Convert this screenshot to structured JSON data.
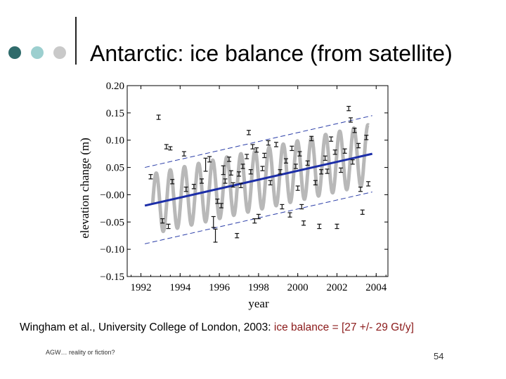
{
  "slide": {
    "title": "Antarctic: ice balance (from satellite)",
    "caption_prefix": "Wingham et al., University College of London, 2003: ",
    "caption_highlight": "ice balance = [27 +/- 29 Gt/y]",
    "footer_text": "AGW… reality or fiction?",
    "page_number": "54",
    "dot_colors": [
      "#2f6b6b",
      "#9ccfcf",
      "#c9c9c9"
    ],
    "highlight_color": "#8b1a1a"
  },
  "chart_data": {
    "type": "scatter",
    "title": "",
    "xlabel": "year",
    "ylabel": "elevation change (m)",
    "xlim": [
      1991.3,
      2004.6
    ],
    "ylim": [
      -0.15,
      0.2
    ],
    "x_ticks": [
      1992,
      1994,
      1996,
      1998,
      2000,
      2002,
      2004
    ],
    "x_tick_labels": [
      "1992",
      "1994",
      "1996",
      "1998",
      "2000",
      "2002",
      "2004"
    ],
    "y_ticks": [
      -0.15,
      -0.1,
      -0.05,
      0.0,
      0.05,
      0.1,
      0.15,
      0.2
    ],
    "y_tick_labels": [
      "−0.15",
      "−0.10",
      "−0.05",
      "−0.00",
      "0.05",
      "0.10",
      "0.15",
      "0.20"
    ],
    "trend": {
      "name": "trend",
      "x": [
        1992.2,
        2003.8
      ],
      "y": [
        -0.02,
        0.075
      ],
      "color": "#1c2ea8"
    },
    "upper_bound": {
      "name": "upper bound",
      "x": [
        1992.2,
        2003.8
      ],
      "y": [
        0.05,
        0.145
      ],
      "color": "#2b3ea8"
    },
    "lower_bound": {
      "name": "lower bound",
      "x": [
        1992.2,
        2003.8
      ],
      "y": [
        -0.09,
        0.005
      ],
      "color": "#2b3ea8"
    },
    "seasonal": {
      "name": "seasonal cycle",
      "x_start": 1992.6,
      "x_end": 2003.6,
      "amplitude": 0.055,
      "period": 0.72,
      "color": "#b8b8b8"
    },
    "series": [
      {
        "name": "satellite elevation change",
        "points": [
          {
            "x": 1992.5,
            "y": 0.033,
            "err": 0.004
          },
          {
            "x": 1992.9,
            "y": 0.142,
            "err": 0.004
          },
          {
            "x": 1993.1,
            "y": -0.048,
            "err": 0.004
          },
          {
            "x": 1993.3,
            "y": 0.088,
            "err": 0.004
          },
          {
            "x": 1993.4,
            "y": -0.058,
            "err": 0.004
          },
          {
            "x": 1993.5,
            "y": 0.085,
            "err": 0.003
          },
          {
            "x": 1993.6,
            "y": 0.024,
            "err": 0.004
          },
          {
            "x": 1994.2,
            "y": 0.075,
            "err": 0.004
          },
          {
            "x": 1994.3,
            "y": 0.01,
            "err": 0.004
          },
          {
            "x": 1994.7,
            "y": 0.015,
            "err": 0.004
          },
          {
            "x": 1995.1,
            "y": 0.025,
            "err": 0.004
          },
          {
            "x": 1995.3,
            "y": 0.055,
            "err": 0.012
          },
          {
            "x": 1995.5,
            "y": 0.065,
            "err": 0.005
          },
          {
            "x": 1995.7,
            "y": -0.05,
            "err": 0.01
          },
          {
            "x": 1995.8,
            "y": -0.075,
            "err": 0.012
          },
          {
            "x": 1995.9,
            "y": -0.012,
            "err": 0.004
          },
          {
            "x": 1996.1,
            "y": -0.02,
            "err": 0.004
          },
          {
            "x": 1996.2,
            "y": 0.045,
            "err": 0.008
          },
          {
            "x": 1996.3,
            "y": 0.025,
            "err": 0.004
          },
          {
            "x": 1996.5,
            "y": 0.065,
            "err": 0.004
          },
          {
            "x": 1996.6,
            "y": 0.04,
            "err": 0.004
          },
          {
            "x": 1996.7,
            "y": 0.018,
            "err": 0.004
          },
          {
            "x": 1996.9,
            "y": -0.075,
            "err": 0.004
          },
          {
            "x": 1997.0,
            "y": 0.038,
            "err": 0.004
          },
          {
            "x": 1997.1,
            "y": 0.017,
            "err": 0.004
          },
          {
            "x": 1997.2,
            "y": 0.052,
            "err": 0.004
          },
          {
            "x": 1997.4,
            "y": 0.07,
            "err": 0.004
          },
          {
            "x": 1997.5,
            "y": 0.114,
            "err": 0.004
          },
          {
            "x": 1997.6,
            "y": 0.042,
            "err": 0.004
          },
          {
            "x": 1997.7,
            "y": 0.088,
            "err": 0.004
          },
          {
            "x": 1997.8,
            "y": -0.048,
            "err": 0.004
          },
          {
            "x": 1997.9,
            "y": 0.082,
            "err": 0.004
          },
          {
            "x": 1998.0,
            "y": -0.04,
            "err": 0.004
          },
          {
            "x": 1998.2,
            "y": 0.048,
            "err": 0.004
          },
          {
            "x": 1998.3,
            "y": 0.072,
            "err": 0.004
          },
          {
            "x": 1998.5,
            "y": 0.095,
            "err": 0.004
          },
          {
            "x": 1998.6,
            "y": 0.022,
            "err": 0.004
          },
          {
            "x": 1998.9,
            "y": 0.092,
            "err": 0.004
          },
          {
            "x": 1999.1,
            "y": 0.042,
            "err": 0.004
          },
          {
            "x": 1999.2,
            "y": -0.022,
            "err": 0.004
          },
          {
            "x": 1999.4,
            "y": 0.062,
            "err": 0.004
          },
          {
            "x": 1999.6,
            "y": -0.037,
            "err": 0.004
          },
          {
            "x": 1999.7,
            "y": 0.085,
            "err": 0.004
          },
          {
            "x": 1999.9,
            "y": 0.052,
            "err": 0.004
          },
          {
            "x": 2000.0,
            "y": 0.012,
            "err": 0.004
          },
          {
            "x": 2000.1,
            "y": 0.075,
            "err": 0.004
          },
          {
            "x": 2000.2,
            "y": -0.022,
            "err": 0.004
          },
          {
            "x": 2000.3,
            "y": -0.052,
            "err": 0.004
          },
          {
            "x": 2000.5,
            "y": 0.058,
            "err": 0.004
          },
          {
            "x": 2000.7,
            "y": 0.103,
            "err": 0.004
          },
          {
            "x": 2000.9,
            "y": 0.022,
            "err": 0.004
          },
          {
            "x": 2001.1,
            "y": -0.058,
            "err": 0.004
          },
          {
            "x": 2001.2,
            "y": 0.042,
            "err": 0.004
          },
          {
            "x": 2001.4,
            "y": 0.067,
            "err": 0.004
          },
          {
            "x": 2001.5,
            "y": 0.043,
            "err": 0.004
          },
          {
            "x": 2001.7,
            "y": 0.102,
            "err": 0.004
          },
          {
            "x": 2001.9,
            "y": 0.078,
            "err": 0.004
          },
          {
            "x": 2002.0,
            "y": -0.058,
            "err": 0.004
          },
          {
            "x": 2002.2,
            "y": 0.045,
            "err": 0.004
          },
          {
            "x": 2002.4,
            "y": 0.08,
            "err": 0.004
          },
          {
            "x": 2002.6,
            "y": 0.158,
            "err": 0.004
          },
          {
            "x": 2002.7,
            "y": 0.137,
            "err": 0.004
          },
          {
            "x": 2002.8,
            "y": 0.06,
            "err": 0.004
          },
          {
            "x": 2002.9,
            "y": 0.118,
            "err": 0.004
          },
          {
            "x": 2003.1,
            "y": 0.09,
            "err": 0.004
          },
          {
            "x": 2003.2,
            "y": 0.01,
            "err": 0.004
          },
          {
            "x": 2003.3,
            "y": -0.032,
            "err": 0.004
          },
          {
            "x": 2003.5,
            "y": 0.105,
            "err": 0.004
          },
          {
            "x": 2003.6,
            "y": 0.02,
            "err": 0.004
          }
        ]
      }
    ]
  }
}
